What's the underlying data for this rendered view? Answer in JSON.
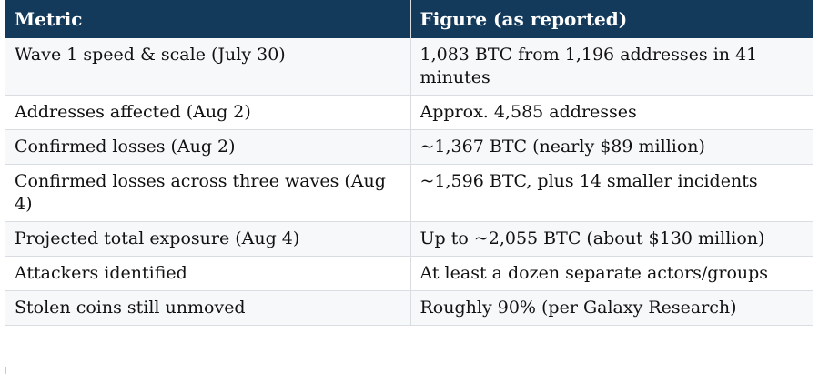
{
  "table": {
    "headers": [
      "Metric",
      "Figure (as reported)"
    ],
    "rows": [
      [
        "Wave 1 speed & scale (July 30)",
        "1,083 BTC from 1,196 addresses in 41 minutes"
      ],
      [
        "Addresses affected (Aug 2)",
        "Approx. 4,585 addresses"
      ],
      [
        "Confirmed losses (Aug 2)",
        "~1,367 BTC (nearly $89 million)"
      ],
      [
        "Confirmed losses across three waves (Aug 4)",
        "~1,596 BTC, plus 14 smaller incidents"
      ],
      [
        "Projected total exposure (Aug 4)",
        "Up to ~2,055 BTC (about $130 million)"
      ],
      [
        "Attackers identified",
        "At least a dozen separate actors/groups"
      ],
      [
        "Stolen coins still unmoved",
        "Roughly 90% (per Galaxy Research)"
      ]
    ]
  },
  "colors": {
    "header_bg": "#143a5b",
    "header_text": "#ffffff",
    "row_alt_bg": "#f7f8fa",
    "border": "#d9dde2"
  }
}
